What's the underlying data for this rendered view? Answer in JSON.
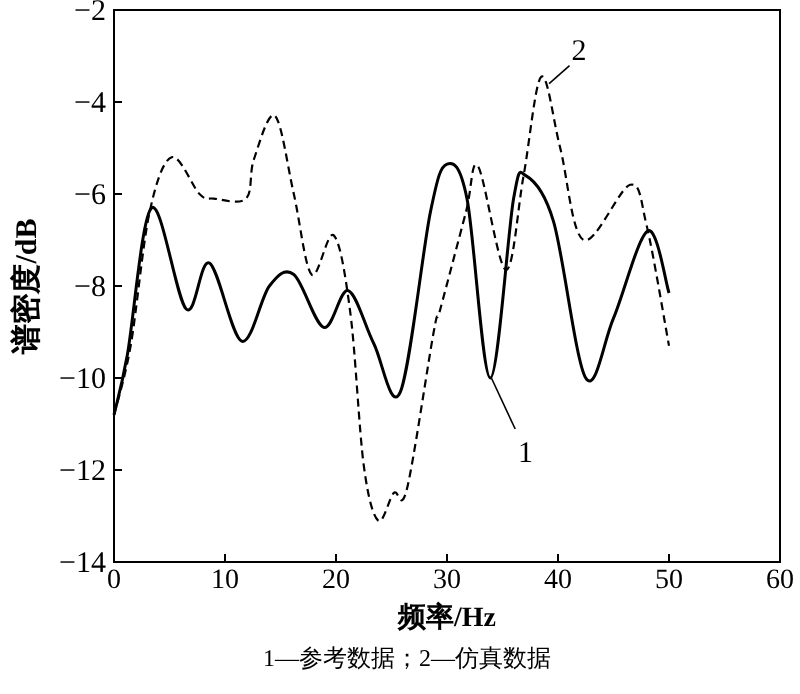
{
  "chart_data": {
    "type": "line",
    "xlabel": "频率/Hz",
    "ylabel": "谱密度/dB",
    "xlim": [
      0,
      60
    ],
    "ylim": [
      -14,
      -2
    ],
    "xticks": [
      0,
      10,
      20,
      30,
      40,
      50,
      60
    ],
    "yticks": [
      {
        "value": -14,
        "label": "−14"
      },
      {
        "value": -12,
        "label": "−12"
      },
      {
        "value": -10,
        "label": "−10"
      },
      {
        "value": -8,
        "label": "−8"
      },
      {
        "value": -6,
        "label": "−6"
      },
      {
        "value": -4,
        "label": "−4"
      },
      {
        "value": -2,
        "label": "−2"
      }
    ],
    "grid": false,
    "marker": "none",
    "series": [
      {
        "color": "#000000",
        "line_style": "solid",
        "x": [
          0,
          1.2,
          3.4,
          6.5,
          8.6,
          11.5,
          14,
          16.2,
          18.9,
          21.1,
          23.4,
          25.8,
          28.5,
          30,
          31.8,
          33.9,
          36,
          37.1,
          39.6,
          42.5,
          45,
          48.1,
          50
        ],
        "values": [
          -10.8,
          -9.5,
          -6.3,
          -8.5,
          -7.5,
          -9.2,
          -8.0,
          -7.75,
          -8.9,
          -8.1,
          -9.25,
          -10.3,
          -6.4,
          -5.35,
          -6.1,
          -10.0,
          -6.1,
          -5.6,
          -6.6,
          -10.0,
          -8.7,
          -6.8,
          -8.15
        ]
      },
      {
        "color": "#000000",
        "line_style": "dashed",
        "x": [
          0,
          1.5,
          3.2,
          5.2,
          7.7,
          9,
          11.9,
          12.6,
          14.5,
          16.2,
          17.8,
          19.8,
          21.3,
          22.5,
          23.8,
          25.2,
          26.4,
          28.8,
          29.4,
          31.7,
          32.8,
          35.3,
          36.9,
          38.5,
          40.2,
          42.3,
          46.5,
          48,
          50
        ],
        "values": [
          -10.8,
          -9.3,
          -6.4,
          -5.2,
          -6.0,
          -6.1,
          -6.1,
          -5.25,
          -4.3,
          -6.0,
          -7.75,
          -6.9,
          -8.6,
          -11.9,
          -13.1,
          -12.5,
          -12.4,
          -9.0,
          -8.5,
          -6.4,
          -5.4,
          -7.65,
          -5.6,
          -3.45,
          -5.0,
          -7.0,
          -5.8,
          -6.7,
          -9.3
        ]
      }
    ],
    "annotations": [
      {
        "text": "1",
        "x": 34,
        "y": -10
      },
      {
        "text": "2",
        "x": 39.2,
        "y": -3.6
      },
      "1—参考数据；2—仿真数据"
    ]
  }
}
